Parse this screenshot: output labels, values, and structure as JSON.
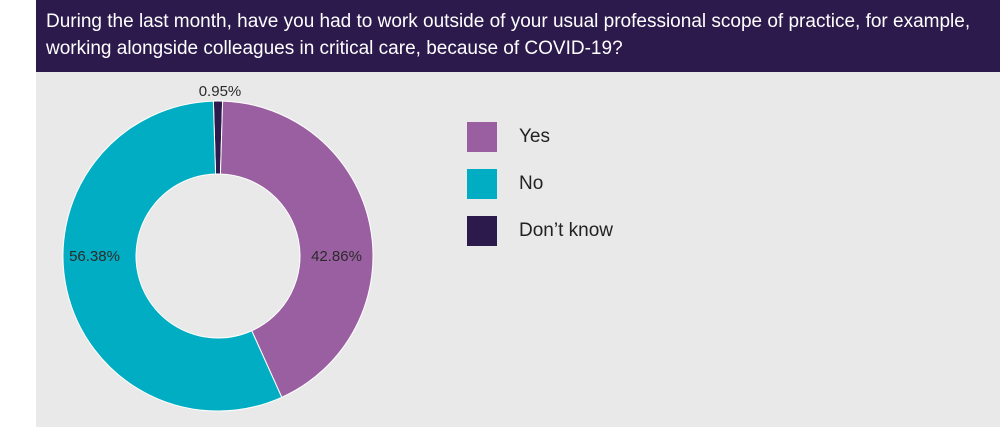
{
  "header": {
    "question": "During the last month, have you had to work outside of your usual professional scope of practice, for example, working alongside colleagues in critical care, because of COVID-19?"
  },
  "colors": {
    "header_bg": "#2c1a4d",
    "panel_bg": "#e9e9e9",
    "yes": "#9a5fa1",
    "no": "#00adc2",
    "dont_know": "#2c1a4d"
  },
  "chart_data": {
    "type": "pie",
    "donut": true,
    "categories": [
      "Yes",
      "No",
      "Don’t know"
    ],
    "values": [
      42.86,
      56.38,
      0.95
    ],
    "data_labels": [
      "42.86%",
      "56.38%",
      "0.95%"
    ],
    "legend_position": "right",
    "start_angle": "top, clockwise"
  }
}
